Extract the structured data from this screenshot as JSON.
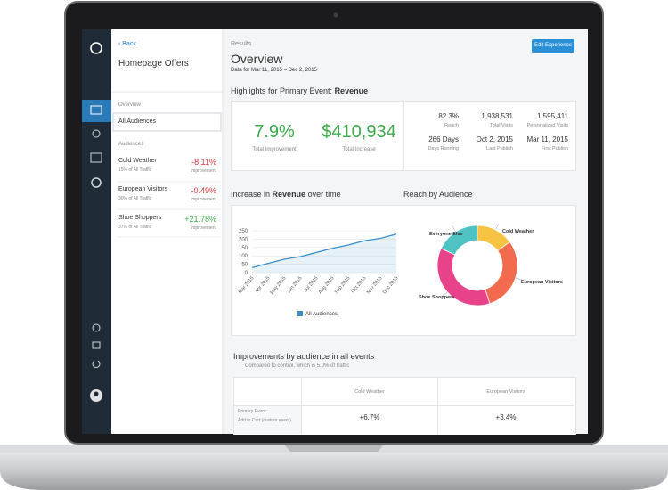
{
  "sidebar": {
    "back": "‹ Back",
    "title": "Homepage Offers",
    "overview_heading": "Overview",
    "selected": "All Audiences",
    "audiences_heading": "Audiences",
    "audiences": [
      {
        "name": "Cold Weather",
        "traffic": "15% of All Traffic",
        "change": "-8.11%",
        "change_label": "Improvement"
      },
      {
        "name": "European Visitors",
        "traffic": "30% of All Traffic",
        "change": "-0.49%",
        "change_label": "Improvement"
      },
      {
        "name": "Shoe Shoppers",
        "traffic": "37% of All Traffic",
        "change": "+21.78%",
        "change_label": "Improvement"
      }
    ]
  },
  "header": {
    "section": "Results",
    "title": "Overview",
    "date_range": "Data for Mar 11, 2015  –  Dec 2, 2015",
    "button": "Edit Experience"
  },
  "highlights": {
    "heading_prefix": "Highlights for Primary Event:",
    "heading_event": "Revenue",
    "improvement": "7.9%",
    "improvement_label": "Total Improvement",
    "increase": "$410,934",
    "increase_label": "Total Increase",
    "stats": [
      {
        "value": "82.3%",
        "label": "Reach"
      },
      {
        "value": "1,938,531",
        "label": "Total Visits"
      },
      {
        "value": "1,595,411",
        "label": "Personalized Visits"
      },
      {
        "value": "266 Days",
        "label": "Days Running"
      },
      {
        "value": "Oct 2, 2015",
        "label": "Last Publish"
      },
      {
        "value": "Mar 11, 2015",
        "label": "First Publish"
      }
    ]
  },
  "revenue_chart": {
    "type": "line",
    "title_prefix": "Increase in",
    "title_event": "Revenue",
    "title_suffix": "over time",
    "x": [
      "Mar 2015",
      "Apr 2015",
      "May 2015",
      "Jun 2015",
      "Jul 2015",
      "Aug 2015",
      "Sep 2015",
      "Oct 2015",
      "Nov 2015",
      "Dec 2015"
    ],
    "series": [
      {
        "name": "All Audiences",
        "color": "#3a8fc8",
        "values": [
          30,
          55,
          80,
          95,
          120,
          145,
          165,
          190,
          205,
          230
        ]
      }
    ],
    "ylim": [
      0,
      250
    ],
    "yticks": [
      0,
      50,
      100,
      150,
      200,
      250
    ],
    "grid": true
  },
  "reach_chart": {
    "type": "pie",
    "title": "Reach by Audience",
    "categories": [
      "Everyone Else",
      "Cold Weather",
      "European Visitors",
      "Shoe Shoppers"
    ],
    "values": [
      18,
      15,
      30,
      37
    ],
    "colors": [
      "#4fc2c4",
      "#f6c343",
      "#f26b4f",
      "#e8428b"
    ]
  },
  "improvements": {
    "title": "Improvements by audience in all events",
    "subtitle": "Compared to control, which is 5.0% of traffic",
    "columns": [
      "Cold Weather",
      "European Visitors"
    ],
    "rows": [
      {
        "event": "Primary Event:",
        "detail": "Add to Cart (custom event)",
        "values": [
          "+6.7%",
          "+3.4%"
        ]
      }
    ]
  }
}
